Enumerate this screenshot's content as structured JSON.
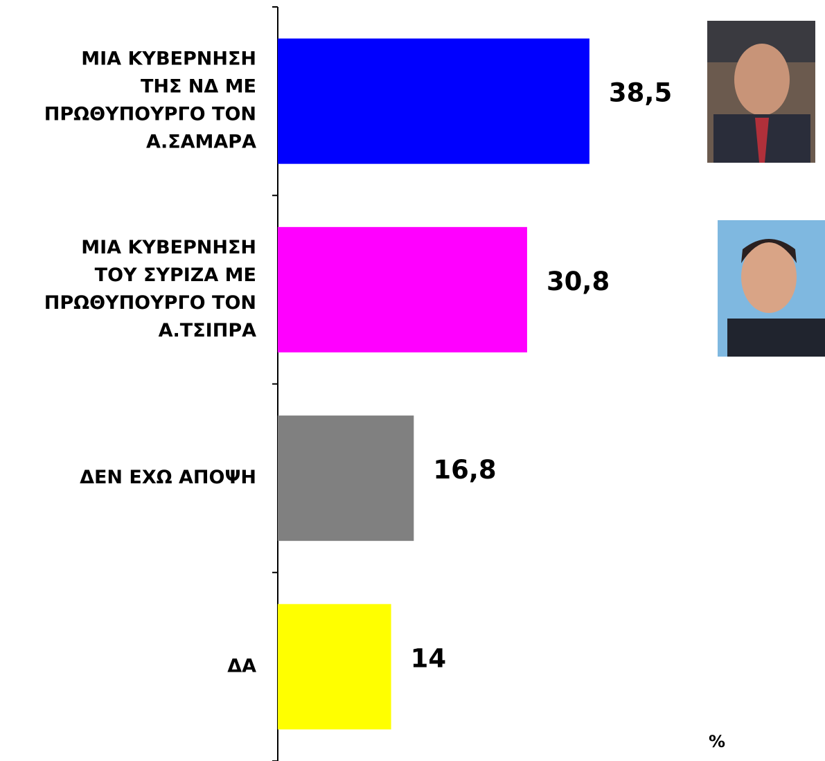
{
  "chart_data": {
    "type": "hbar",
    "categories": [
      [
        "ΜΙΑ ΚΥΒΕΡΝΗΣΗ",
        "ΤΗΣ ΝΔ ΜΕ",
        "ΠΡΩΘΥΠΟΥΡΓΟ ΤΟΝ",
        "Α.ΣΑΜΑΡΑ"
      ],
      [
        "ΜΙΑ ΚΥΒΕΡΝΗΣΗ",
        "ΤΟΥ ΣΥΡΙΖΑ ΜΕ",
        "ΠΡΩΘΥΠΟΥΡΓΟ ΤΟΝ",
        "Α.ΤΣΙΠΡΑ"
      ],
      [
        "ΔΕΝ ΕΧΩ ΑΠΟΨΗ"
      ],
      [
        "ΔΑ"
      ]
    ],
    "values": [
      38.5,
      30.8,
      16.8,
      14
    ],
    "value_labels": [
      "38,5",
      "30,8",
      "16,8",
      "14"
    ],
    "colors": [
      "#0000ff",
      "#ff00ff",
      "#808080",
      "#ffff00"
    ],
    "xlim": [
      0,
      67.6
    ],
    "unit_label": "%"
  }
}
